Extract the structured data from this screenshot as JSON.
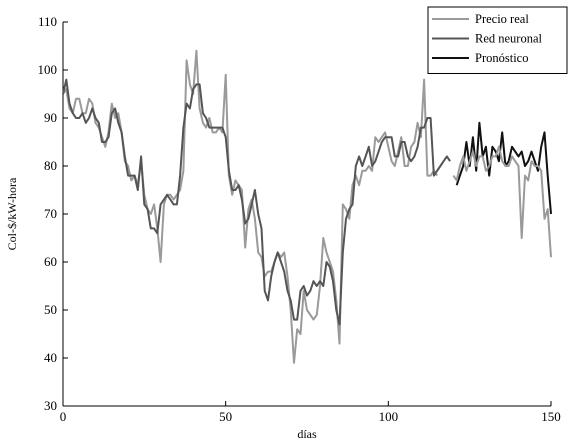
{
  "chart_data": {
    "type": "line",
    "title": "",
    "xlabel": "días",
    "ylabel": "Col-$/kW-hora",
    "xlim": [
      0,
      150
    ],
    "ylim": [
      30,
      110
    ],
    "xticks": [
      0,
      50,
      100,
      150
    ],
    "yticks": [
      30,
      40,
      50,
      60,
      70,
      80,
      90,
      100,
      110
    ],
    "legend": "top-right",
    "grid": false,
    "series": [
      {
        "name": "Precio real",
        "color": "#9a9a9a",
        "width": 2,
        "points": [
          [
            0,
            95
          ],
          [
            1,
            96
          ],
          [
            2,
            92
          ],
          [
            3,
            91
          ],
          [
            4,
            94
          ],
          [
            5,
            94
          ],
          [
            6,
            91
          ],
          [
            7,
            91
          ],
          [
            8,
            94
          ],
          [
            9,
            93
          ],
          [
            10,
            89
          ],
          [
            11,
            88
          ],
          [
            12,
            86
          ],
          [
            13,
            84
          ],
          [
            14,
            87
          ],
          [
            15,
            93
          ],
          [
            16,
            90
          ],
          [
            17,
            91
          ],
          [
            18,
            87
          ],
          [
            19,
            81
          ],
          [
            20,
            80
          ],
          [
            21,
            77
          ],
          [
            22,
            78
          ],
          [
            23,
            76
          ],
          [
            24,
            81
          ],
          [
            25,
            74
          ],
          [
            26,
            71
          ],
          [
            27,
            70
          ],
          [
            28,
            72
          ],
          [
            29,
            67
          ],
          [
            30,
            60
          ],
          [
            31,
            72
          ],
          [
            32,
            74
          ],
          [
            33,
            74
          ],
          [
            34,
            73
          ],
          [
            35,
            74
          ],
          [
            36,
            75
          ],
          [
            37,
            79
          ],
          [
            38,
            102
          ],
          [
            39,
            97
          ],
          [
            40,
            95
          ],
          [
            41,
            104
          ],
          [
            42,
            92
          ],
          [
            43,
            89
          ],
          [
            44,
            88
          ],
          [
            45,
            90
          ],
          [
            46,
            87
          ],
          [
            47,
            87
          ],
          [
            48,
            88
          ],
          [
            49,
            87
          ],
          [
            50,
            99
          ],
          [
            51,
            78
          ],
          [
            52,
            74
          ],
          [
            53,
            77
          ],
          [
            54,
            76
          ],
          [
            55,
            75
          ],
          [
            56,
            63
          ],
          [
            57,
            71
          ],
          [
            58,
            73
          ],
          [
            59,
            69
          ],
          [
            60,
            62
          ],
          [
            61,
            61
          ],
          [
            62,
            57
          ],
          [
            63,
            58
          ],
          [
            64,
            58
          ],
          [
            65,
            60
          ],
          [
            66,
            62
          ],
          [
            67,
            61
          ],
          [
            68,
            62
          ],
          [
            69,
            57
          ],
          [
            70,
            50
          ],
          [
            71,
            39
          ],
          [
            72,
            46
          ],
          [
            73,
            45
          ],
          [
            74,
            54
          ],
          [
            75,
            50
          ],
          [
            76,
            49
          ],
          [
            77,
            48
          ],
          [
            78,
            49
          ],
          [
            79,
            55
          ],
          [
            80,
            65
          ],
          [
            81,
            62
          ],
          [
            82,
            60
          ],
          [
            83,
            58
          ],
          [
            84,
            52
          ],
          [
            85,
            43
          ],
          [
            86,
            72
          ],
          [
            87,
            71
          ],
          [
            88,
            69
          ],
          [
            89,
            76
          ],
          [
            90,
            78
          ],
          [
            91,
            76
          ],
          [
            92,
            79
          ],
          [
            93,
            79
          ],
          [
            94,
            80
          ],
          [
            95,
            79
          ],
          [
            96,
            86
          ],
          [
            97,
            85
          ],
          [
            98,
            86
          ],
          [
            99,
            87
          ],
          [
            100,
            84
          ],
          [
            101,
            81
          ],
          [
            102,
            80
          ],
          [
            103,
            83
          ],
          [
            104,
            86
          ],
          [
            105,
            80
          ],
          [
            106,
            80
          ],
          [
            107,
            84
          ],
          [
            108,
            85
          ],
          [
            109,
            89
          ],
          [
            110,
            86
          ],
          [
            111,
            98
          ],
          [
            112,
            78
          ],
          [
            113,
            78
          ],
          [
            114,
            79
          ],
          [
            115,
            78
          ]
        ]
      },
      {
        "name": "Red neuronal",
        "color": "#555555",
        "width": 2,
        "points": [
          [
            0,
            95
          ],
          [
            1,
            98
          ],
          [
            2,
            93
          ],
          [
            3,
            91
          ],
          [
            4,
            90
          ],
          [
            5,
            90
          ],
          [
            6,
            91
          ],
          [
            7,
            89
          ],
          [
            8,
            90
          ],
          [
            9,
            92
          ],
          [
            10,
            90
          ],
          [
            11,
            89
          ],
          [
            12,
            85
          ],
          [
            13,
            85
          ],
          [
            14,
            86
          ],
          [
            15,
            91
          ],
          [
            16,
            92
          ],
          [
            17,
            89
          ],
          [
            18,
            87
          ],
          [
            19,
            82
          ],
          [
            20,
            78
          ],
          [
            21,
            78
          ],
          [
            22,
            78
          ],
          [
            23,
            75
          ],
          [
            24,
            82
          ],
          [
            25,
            72
          ],
          [
            26,
            71
          ],
          [
            27,
            67
          ],
          [
            28,
            67
          ],
          [
            29,
            66
          ],
          [
            30,
            72
          ],
          [
            31,
            73
          ],
          [
            32,
            74
          ],
          [
            33,
            73
          ],
          [
            34,
            72
          ],
          [
            35,
            72
          ],
          [
            36,
            78
          ],
          [
            37,
            88
          ],
          [
            38,
            93
          ],
          [
            39,
            92
          ],
          [
            40,
            96
          ],
          [
            41,
            97
          ],
          [
            42,
            97
          ],
          [
            43,
            91
          ],
          [
            44,
            90
          ],
          [
            45,
            88
          ],
          [
            46,
            88
          ],
          [
            47,
            88
          ],
          [
            48,
            88
          ],
          [
            49,
            88
          ],
          [
            50,
            86
          ],
          [
            51,
            79
          ],
          [
            52,
            75
          ],
          [
            53,
            75
          ],
          [
            54,
            76
          ],
          [
            55,
            73
          ],
          [
            56,
            68
          ],
          [
            57,
            69
          ],
          [
            58,
            72
          ],
          [
            59,
            75
          ],
          [
            60,
            70
          ],
          [
            61,
            67
          ],
          [
            62,
            54
          ],
          [
            63,
            52
          ],
          [
            64,
            57
          ],
          [
            65,
            60
          ],
          [
            66,
            62
          ],
          [
            67,
            60
          ],
          [
            68,
            58
          ],
          [
            69,
            54
          ],
          [
            70,
            52
          ],
          [
            71,
            48
          ],
          [
            72,
            48
          ],
          [
            73,
            54
          ],
          [
            74,
            55
          ],
          [
            75,
            53
          ],
          [
            76,
            54
          ],
          [
            77,
            56
          ],
          [
            78,
            55
          ],
          [
            79,
            56
          ],
          [
            80,
            55
          ],
          [
            81,
            60
          ],
          [
            82,
            59
          ],
          [
            83,
            56
          ],
          [
            84,
            50
          ],
          [
            85,
            47
          ],
          [
            86,
            62
          ],
          [
            87,
            69
          ],
          [
            88,
            71
          ],
          [
            89,
            72
          ],
          [
            90,
            80
          ],
          [
            91,
            82
          ],
          [
            92,
            80
          ],
          [
            93,
            82
          ],
          [
            94,
            84
          ],
          [
            95,
            80
          ],
          [
            96,
            81
          ],
          [
            97,
            83
          ],
          [
            98,
            85
          ],
          [
            99,
            86
          ],
          [
            100,
            86
          ],
          [
            101,
            86
          ],
          [
            102,
            82
          ],
          [
            103,
            82
          ],
          [
            104,
            85
          ],
          [
            105,
            85
          ],
          [
            106,
            82
          ],
          [
            107,
            81
          ],
          [
            108,
            82
          ],
          [
            109,
            84
          ],
          [
            110,
            88
          ],
          [
            111,
            88
          ],
          [
            112,
            90
          ],
          [
            113,
            90
          ],
          [
            114,
            78
          ],
          [
            115,
            79
          ],
          [
            116,
            80
          ],
          [
            117,
            81
          ],
          [
            118,
            82
          ],
          [
            119,
            81
          ]
        ]
      },
      {
        "name": "Pronóstico",
        "color": "#111111",
        "width": 2,
        "points": [
          [
            121,
            76
          ],
          [
            122,
            78
          ],
          [
            123,
            80
          ],
          [
            124,
            85
          ],
          [
            125,
            80
          ],
          [
            126,
            86
          ],
          [
            127,
            79
          ],
          [
            128,
            89
          ],
          [
            129,
            82
          ],
          [
            130,
            84
          ],
          [
            131,
            78
          ],
          [
            132,
            84
          ],
          [
            133,
            83
          ],
          [
            134,
            81
          ],
          [
            135,
            87
          ],
          [
            136,
            80
          ],
          [
            137,
            81
          ],
          [
            138,
            84
          ],
          [
            139,
            83
          ],
          [
            140,
            82
          ],
          [
            141,
            83
          ],
          [
            142,
            80
          ],
          [
            143,
            81
          ],
          [
            144,
            83
          ],
          [
            145,
            81
          ],
          [
            146,
            79
          ],
          [
            147,
            84
          ],
          [
            148,
            87
          ],
          [
            149,
            78
          ],
          [
            150,
            70
          ]
        ]
      },
      {
        "name": "Precio real (tramo final)",
        "color": "#9a9a9a",
        "width": 2,
        "legend": false,
        "points": [
          [
            120,
            78
          ],
          [
            121,
            77
          ],
          [
            122,
            80
          ],
          [
            123,
            82
          ],
          [
            124,
            79
          ],
          [
            125,
            81
          ],
          [
            126,
            83
          ],
          [
            127,
            80
          ],
          [
            128,
            82
          ],
          [
            129,
            82
          ],
          [
            130,
            79
          ],
          [
            131,
            80
          ],
          [
            132,
            82
          ],
          [
            133,
            82
          ],
          [
            134,
            84
          ],
          [
            135,
            81
          ],
          [
            136,
            80
          ],
          [
            137,
            80
          ],
          [
            138,
            82
          ],
          [
            139,
            81
          ],
          [
            140,
            80
          ],
          [
            141,
            65
          ],
          [
            142,
            78
          ],
          [
            143,
            77
          ],
          [
            144,
            81
          ],
          [
            145,
            80
          ],
          [
            146,
            80
          ],
          [
            147,
            79
          ],
          [
            148,
            69
          ],
          [
            149,
            71
          ],
          [
            150,
            61
          ]
        ]
      }
    ]
  }
}
